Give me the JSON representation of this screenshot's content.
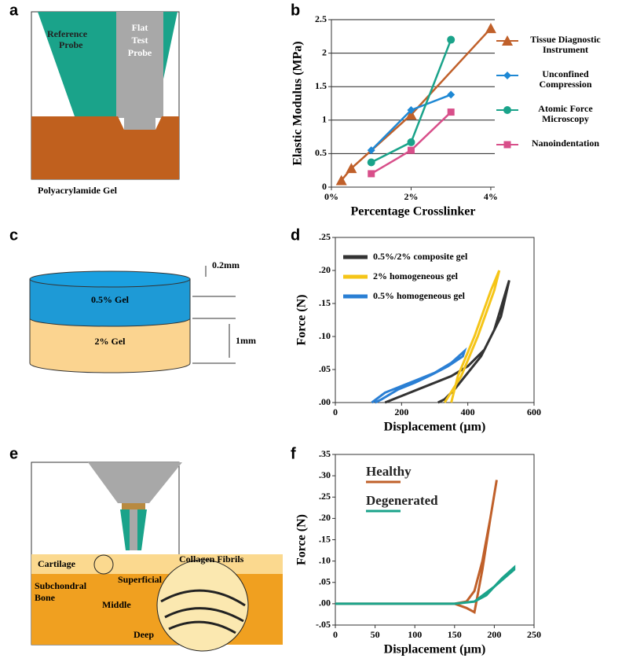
{
  "panel_labels": [
    "a",
    "b",
    "c",
    "d",
    "e",
    "f"
  ],
  "panel_a": {
    "reference_probe": [
      "Reference",
      "Probe"
    ],
    "flat_test_probe": [
      "Flat",
      "Test",
      "Probe"
    ],
    "gel": "Polyacrylamide Gel"
  },
  "panel_c": {
    "thin_label": "0.2mm",
    "top_layer": "0.5% Gel",
    "bottom_layer": "2% Gel",
    "thick_label": "1mm"
  },
  "panel_e": {
    "cartilage": "Cartilage",
    "fibrils": "Collagen Fibrils",
    "superficial": "Superficial",
    "bone": [
      "Subchondral",
      "Bone"
    ],
    "middle": "Middle",
    "deep": "Deep"
  },
  "chart_data": [
    {
      "type": "line",
      "xlabel": "Percentage Crosslinker",
      "ylabel": "Elastic Modulus (MPa)",
      "xlim": [
        0,
        4.1
      ],
      "xticks": [
        {
          "value": 0,
          "label": "0%"
        },
        {
          "value": 2,
          "label": "2%"
        },
        {
          "value": 4,
          "label": "4%"
        }
      ],
      "ylim": [
        0,
        2.5
      ],
      "yticks": [
        0,
        0.5,
        1,
        1.5,
        2,
        2.5
      ],
      "grid": true,
      "series": [
        {
          "name": "Tissue Diagnostic Instrument",
          "color": "#c0602a",
          "marker": "triangle",
          "x": [
            0.25,
            0.5,
            2,
            4
          ],
          "values": [
            0.1,
            0.28,
            1.08,
            2.37
          ]
        },
        {
          "name": "Unconfined Compression",
          "color": "#1e88d4",
          "marker": "diamond",
          "x": [
            1,
            2,
            3
          ],
          "values": [
            0.55,
            1.15,
            1.38
          ]
        },
        {
          "name": "Atomic Force Microscopy",
          "color": "#1aa38a",
          "marker": "circle",
          "x": [
            1,
            2,
            3
          ],
          "values": [
            0.37,
            0.67,
            2.2
          ]
        },
        {
          "name": "Nanoindentation",
          "color": "#d84f8a",
          "marker": "square",
          "x": [
            1,
            2,
            3
          ],
          "values": [
            0.2,
            0.55,
            1.12
          ]
        }
      ]
    },
    {
      "type": "line",
      "xlabel": "Displacement (µm)",
      "ylabel": "Force (N)",
      "xlim": [
        0,
        600
      ],
      "xticks": [
        0,
        200,
        400,
        600
      ],
      "ylim": [
        0,
        0.25
      ],
      "yticks": [
        {
          "value": 0,
          "label": ".00"
        },
        {
          "value": 0.05,
          "label": ".05"
        },
        {
          "value": 0.1,
          "label": ".10"
        },
        {
          "value": 0.15,
          "label": ".15"
        },
        {
          "value": 0.2,
          "label": ".20"
        },
        {
          "value": 0.25,
          "label": ".25"
        }
      ],
      "series": [
        {
          "name": "0.5%/2% composite gel",
          "color": "#333333",
          "x": [
            150,
            200,
            250,
            300,
            350,
            400,
            450,
            500,
            525,
            510,
            480,
            440,
            400,
            360,
            330,
            310
          ],
          "values": [
            0,
            0.01,
            0.02,
            0.03,
            0.04,
            0.055,
            0.08,
            0.13,
            0.185,
            0.16,
            0.11,
            0.07,
            0.045,
            0.02,
            0.005,
            0
          ]
        },
        {
          "name": "2% homogeneous gel",
          "color": "#f5c518",
          "x": [
            330,
            380,
            430,
            480,
            495,
            470,
            420,
            370,
            350
          ],
          "values": [
            0,
            0.04,
            0.1,
            0.17,
            0.2,
            0.17,
            0.1,
            0.04,
            0
          ]
        },
        {
          "name": "0.5% homogeneous gel",
          "color": "#2a7fd4",
          "x": [
            110,
            150,
            200,
            250,
            300,
            350,
            390,
            385,
            340,
            290,
            240,
            190,
            140,
            120
          ],
          "values": [
            0,
            0.015,
            0.025,
            0.035,
            0.045,
            0.06,
            0.078,
            0.07,
            0.055,
            0.042,
            0.03,
            0.02,
            0.005,
            0
          ]
        }
      ]
    },
    {
      "type": "line",
      "xlabel": "Displacement (µm)",
      "ylabel": "Force (N)",
      "xlim": [
        0,
        250
      ],
      "xticks": [
        0,
        50,
        100,
        150,
        200,
        250
      ],
      "ylim": [
        -0.05,
        0.35
      ],
      "yticks": [
        {
          "value": -0.05,
          "label": "-.05"
        },
        {
          "value": 0,
          "label": ".00"
        },
        {
          "value": 0.05,
          "label": ".05"
        },
        {
          "value": 0.1,
          "label": ".10"
        },
        {
          "value": 0.15,
          "label": ".15"
        },
        {
          "value": 0.2,
          "label": ".20"
        },
        {
          "value": 0.25,
          "label": ".25"
        },
        {
          "value": 0.3,
          "label": ".30"
        },
        {
          "value": 0.35,
          "label": ".35"
        }
      ],
      "series": [
        {
          "name": "Healthy",
          "color": "#c0602a",
          "x": [
            0,
            150,
            165,
            175,
            185,
            195,
            203,
            195,
            185,
            175,
            165,
            150,
            100,
            0
          ],
          "values": [
            0,
            0,
            -0.01,
            -0.02,
            0.08,
            0.2,
            0.29,
            0.2,
            0.1,
            0.03,
            0.005,
            0,
            0,
            0
          ]
        },
        {
          "name": "Degenerated",
          "color": "#1aa38a",
          "x": [
            0,
            150,
            175,
            200,
            225,
            225,
            210,
            190,
            175,
            150,
            0
          ],
          "values": [
            0,
            0,
            0.005,
            0.04,
            0.08,
            0.085,
            0.06,
            0.02,
            0.005,
            0,
            0
          ]
        }
      ]
    }
  ]
}
